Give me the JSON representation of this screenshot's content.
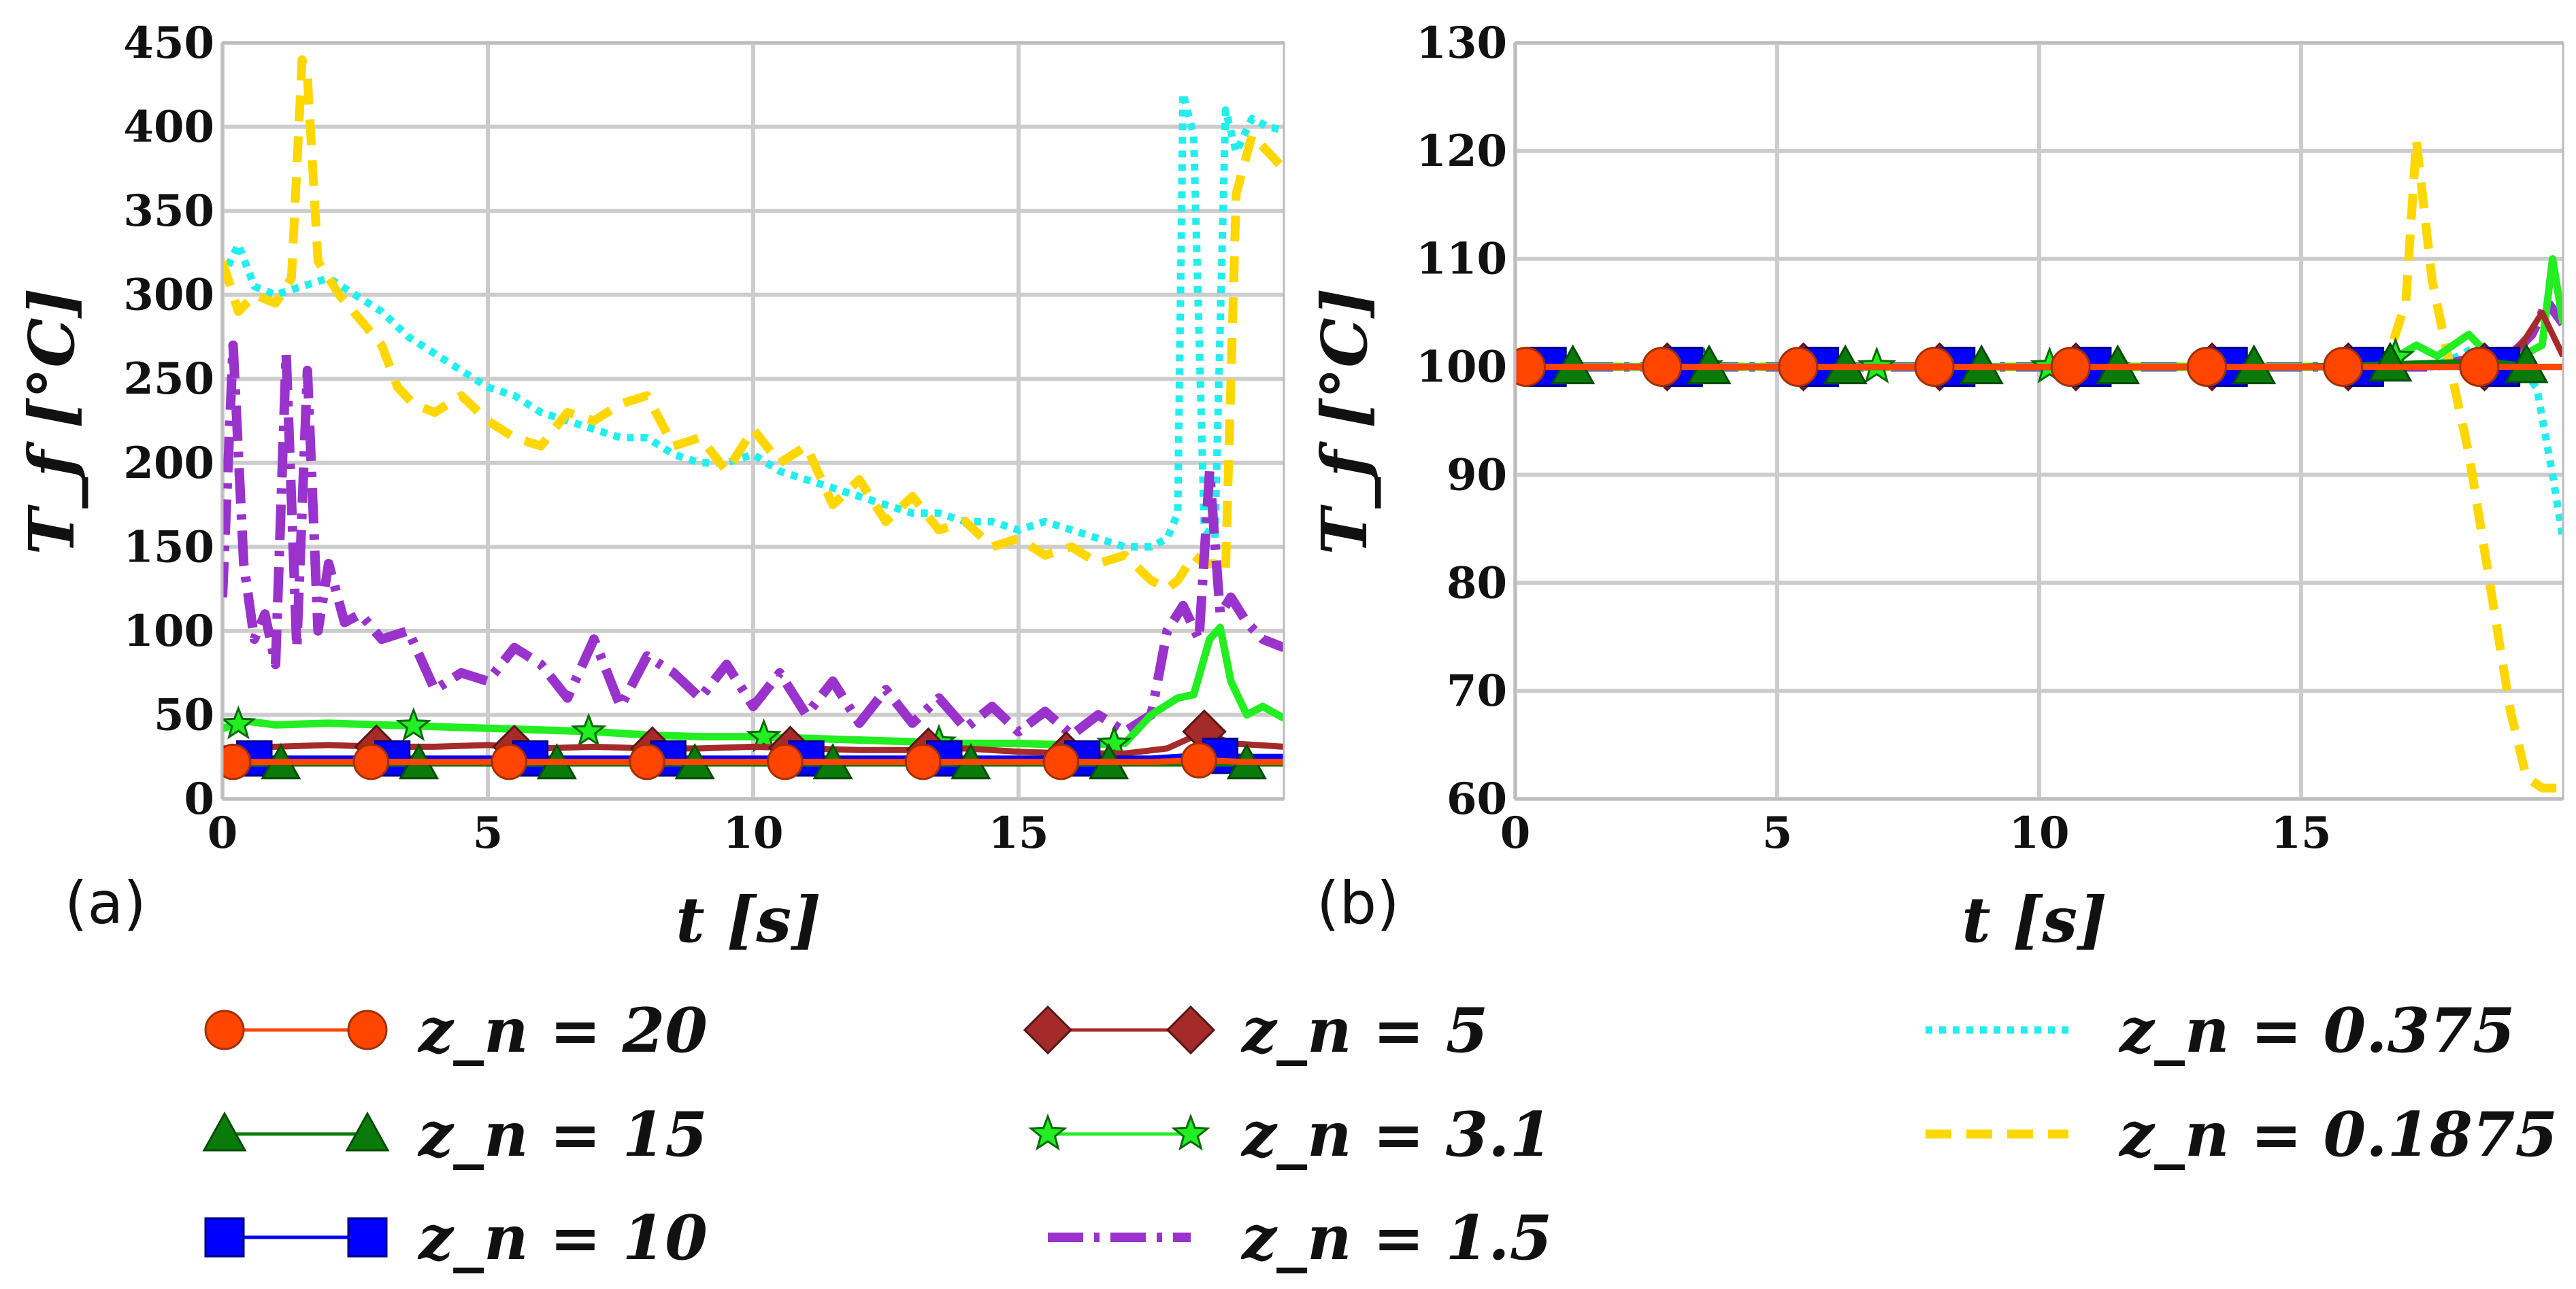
{
  "colors": {
    "z20": "#ff4500",
    "z15": "#0a7a0a",
    "z10": "#0000ff",
    "z5": "#a52a2a",
    "z31": "#22ee22",
    "z15b": "#9933cc",
    "z0375": "#22eeee",
    "z01875": "#ffd700"
  },
  "legend": [
    {
      "id": "z20",
      "label": "z_n = 20",
      "marker": "circle-marker-icon",
      "linestyle": "solid"
    },
    {
      "id": "z15",
      "label": "z_n = 15",
      "marker": "triangle-marker-icon",
      "linestyle": "solid"
    },
    {
      "id": "z10",
      "label": "z_n = 10",
      "marker": "square-marker-icon",
      "linestyle": "solid"
    },
    {
      "id": "z5",
      "label": "z_n = 5",
      "marker": "diamond-marker-icon",
      "linestyle": "solid"
    },
    {
      "id": "z31",
      "label": "z_n = 3.1",
      "marker": "star-marker-icon",
      "linestyle": "solid"
    },
    {
      "id": "z15b",
      "label": "z_n = 1.5",
      "marker": "none",
      "linestyle": "dash-dot"
    },
    {
      "id": "z0375",
      "label": "z_n = 0.375",
      "marker": "none",
      "linestyle": "dotted"
    },
    {
      "id": "z01875",
      "label": "z_n = 0.1875",
      "marker": "none",
      "linestyle": "dashed"
    }
  ],
  "chart_data": [
    {
      "type": "line",
      "panel_label": "(a)",
      "xlabel": "t [s]",
      "ylabel": "T_f [°C]",
      "xlim": [
        0,
        20
      ],
      "ylim": [
        0,
        450
      ],
      "xticks": [
        0,
        5,
        10,
        15
      ],
      "yticks": [
        0,
        50,
        100,
        150,
        200,
        250,
        300,
        350,
        400,
        450
      ],
      "grid": true,
      "series": [
        {
          "id": "z20",
          "name": "z_n = 20",
          "x": [
            0,
            2,
            4,
            6,
            8,
            10,
            12,
            14,
            16,
            17.5,
            18.5,
            19.2,
            20
          ],
          "y": [
            22,
            22,
            22,
            22,
            22,
            22,
            22,
            22,
            22,
            22,
            23,
            22,
            22
          ]
        },
        {
          "id": "z15",
          "name": "z_n = 15",
          "x": [
            0,
            2,
            4,
            6,
            8,
            10,
            12,
            14,
            16,
            17.5,
            18.5,
            19.2,
            20
          ],
          "y": [
            21,
            21,
            21,
            21,
            21,
            21,
            21,
            21,
            21,
            21,
            21,
            21,
            21
          ]
        },
        {
          "id": "z10",
          "name": "z_n = 10",
          "x": [
            0,
            2,
            4,
            6,
            8,
            10,
            12,
            14,
            16,
            17.5,
            18.5,
            19.2,
            20
          ],
          "y": [
            24,
            24,
            24,
            24,
            24,
            24,
            24,
            24,
            24,
            24,
            26,
            25,
            25
          ]
        },
        {
          "id": "z5",
          "name": "z_n = 5",
          "x": [
            0,
            1,
            2,
            3,
            4,
            5,
            6,
            7,
            8,
            9,
            10,
            11,
            12,
            13,
            14,
            15,
            16,
            17,
            17.8,
            18.5,
            19,
            19.5,
            20
          ],
          "y": [
            30,
            31,
            32,
            31,
            31,
            32,
            30,
            31,
            30,
            30,
            31,
            30,
            29,
            29,
            30,
            28,
            27,
            27,
            30,
            40,
            33,
            32,
            31
          ]
        },
        {
          "id": "z31",
          "name": "z_n = 3.1",
          "x": [
            0,
            0.5,
            1,
            2,
            3,
            4,
            5,
            6,
            7,
            8,
            9,
            10,
            11,
            12,
            13,
            14,
            15,
            16,
            17,
            17.5,
            18,
            18.3,
            18.6,
            18.8,
            19,
            19.3,
            19.6,
            20
          ],
          "y": [
            42,
            46,
            44,
            45,
            44,
            43,
            42,
            41,
            40,
            38,
            37,
            37,
            36,
            35,
            34,
            33,
            33,
            32,
            33,
            50,
            60,
            62,
            95,
            102,
            70,
            50,
            55,
            48
          ]
        },
        {
          "id": "z15b",
          "name": "z_n = 1.5",
          "x": [
            0,
            0.2,
            0.4,
            0.6,
            0.8,
            1.0,
            1.2,
            1.4,
            1.6,
            1.8,
            2.0,
            2.3,
            2.6,
            3,
            3.5,
            4,
            4.5,
            5,
            5.5,
            6,
            6.5,
            7,
            7.5,
            8,
            8.5,
            9,
            9.5,
            10,
            10.5,
            11,
            11.5,
            12,
            12.5,
            13,
            13.5,
            14,
            14.5,
            15,
            15.5,
            16,
            16.5,
            17,
            17.5,
            17.8,
            18.1,
            18.4,
            18.6,
            18.8,
            19.0,
            19.3,
            19.6,
            20
          ],
          "y": [
            120,
            270,
            140,
            95,
            110,
            80,
            265,
            90,
            255,
            100,
            140,
            105,
            110,
            95,
            100,
            65,
            75,
            70,
            90,
            80,
            60,
            95,
            55,
            85,
            75,
            60,
            80,
            55,
            75,
            50,
            70,
            45,
            65,
            45,
            60,
            42,
            55,
            40,
            52,
            38,
            50,
            40,
            50,
            100,
            115,
            95,
            195,
            110,
            120,
            105,
            95,
            90
          ]
        },
        {
          "id": "z0375",
          "name": "z_n = 0.375",
          "x": [
            0,
            0.3,
            0.6,
            1,
            1.5,
            2,
            2.5,
            3,
            3.5,
            4,
            4.5,
            5,
            5.5,
            6,
            6.5,
            7,
            7.5,
            8,
            8.5,
            9,
            9.5,
            10,
            10.5,
            11,
            11.5,
            12,
            12.5,
            13,
            13.5,
            14,
            14.5,
            15,
            15.5,
            16,
            16.5,
            17,
            17.5,
            17.8,
            18,
            18.1,
            18.3,
            18.5,
            18.7,
            18.9,
            19.1,
            19.4,
            19.7,
            20
          ],
          "y": [
            310,
            330,
            305,
            300,
            305,
            310,
            300,
            290,
            275,
            265,
            255,
            245,
            240,
            230,
            225,
            220,
            215,
            215,
            205,
            200,
            200,
            205,
            195,
            190,
            185,
            180,
            175,
            170,
            170,
            165,
            165,
            160,
            165,
            160,
            155,
            150,
            150,
            155,
            170,
            420,
            395,
            160,
            155,
            410,
            385,
            405,
            400,
            398
          ]
        },
        {
          "id": "z01875",
          "name": "z_n = 0.1875",
          "x": [
            0,
            0.3,
            0.6,
            1,
            1.3,
            1.5,
            1.6,
            1.8,
            2.2,
            2.6,
            3,
            3.3,
            3.6,
            4,
            4.5,
            5,
            5.5,
            6,
            6.5,
            7,
            7.5,
            8,
            8.5,
            9,
            9.5,
            10,
            10.5,
            11,
            11.5,
            12,
            12.5,
            13,
            13.5,
            14,
            14.5,
            15,
            15.5,
            16,
            16.5,
            17,
            17.5,
            17.8,
            18,
            18.3,
            18.5,
            18.7,
            18.9,
            19.1,
            19.4,
            19.7,
            20
          ],
          "y": [
            320,
            290,
            300,
            295,
            310,
            440,
            430,
            320,
            300,
            285,
            270,
            245,
            235,
            230,
            240,
            225,
            215,
            210,
            230,
            225,
            235,
            240,
            210,
            215,
            195,
            220,
            200,
            210,
            175,
            190,
            165,
            180,
            160,
            165,
            150,
            155,
            145,
            150,
            140,
            145,
            130,
            125,
            130,
            145,
            140,
            140,
            135,
            360,
            395,
            385,
            375
          ]
        }
      ]
    },
    {
      "type": "line",
      "panel_label": "(b)",
      "xlabel": "t [s]",
      "ylabel": "T_f [°C]",
      "xlim": [
        0,
        20
      ],
      "ylim": [
        60,
        130
      ],
      "xticks": [
        0,
        5,
        10,
        15
      ],
      "yticks": [
        60,
        70,
        80,
        90,
        100,
        110,
        120,
        130
      ],
      "grid": true,
      "series": [
        {
          "id": "z20",
          "name": "z_n = 20",
          "x": [
            0,
            5,
            10,
            15,
            18.5,
            19.5,
            20
          ],
          "y": [
            100,
            100,
            100,
            100,
            100,
            100,
            100
          ]
        },
        {
          "id": "z15",
          "name": "z_n = 15",
          "x": [
            0,
            5,
            10,
            15,
            18.5,
            19.5,
            20
          ],
          "y": [
            100,
            100,
            100,
            100,
            100.5,
            100,
            100
          ]
        },
        {
          "id": "z10",
          "name": "z_n = 10",
          "x": [
            0,
            5,
            10,
            15,
            18.5,
            19.5,
            20
          ],
          "y": [
            100,
            100,
            100,
            100,
            100,
            100,
            100
          ]
        },
        {
          "id": "z5",
          "name": "z_n = 5",
          "x": [
            0,
            5,
            10,
            15,
            17.5,
            18.5,
            19.2,
            19.6,
            20
          ],
          "y": [
            100,
            100,
            100,
            100,
            100,
            100,
            102,
            105,
            101
          ]
        },
        {
          "id": "z31",
          "name": "z_n = 3.1",
          "x": [
            0,
            5,
            10,
            15,
            16.5,
            17.2,
            17.6,
            18.2,
            18.6,
            19.2,
            19.6,
            19.8,
            20
          ],
          "y": [
            100,
            100,
            100,
            100,
            100,
            102,
            101,
            103,
            101,
            101,
            102,
            110,
            104
          ]
        },
        {
          "id": "z15b",
          "name": "z_n = 1.5",
          "x": [
            0,
            5,
            10,
            15,
            17.5,
            18.5,
            19.0,
            19.4,
            19.7,
            20
          ],
          "y": [
            100,
            100,
            100,
            100,
            100,
            101,
            101,
            103,
            106,
            104
          ]
        },
        {
          "id": "z0375",
          "name": "z_n = 0.375",
          "x": [
            0,
            5,
            10,
            15,
            17.5,
            18.0,
            18.4,
            18.8,
            19.2,
            19.5,
            19.8,
            20
          ],
          "y": [
            100,
            100,
            100,
            100,
            100,
            101,
            102,
            101,
            100,
            98,
            90,
            84
          ]
        },
        {
          "id": "z01875",
          "name": "z_n = 0.1875",
          "x": [
            0,
            5,
            10,
            15,
            16.6,
            17.0,
            17.2,
            17.5,
            17.8,
            18.2,
            18.6,
            19.0,
            19.3,
            19.6,
            20
          ],
          "y": [
            100,
            100,
            100,
            100,
            100,
            106,
            121,
            108,
            101,
            92,
            80,
            68,
            62,
            61,
            61
          ]
        }
      ]
    }
  ]
}
